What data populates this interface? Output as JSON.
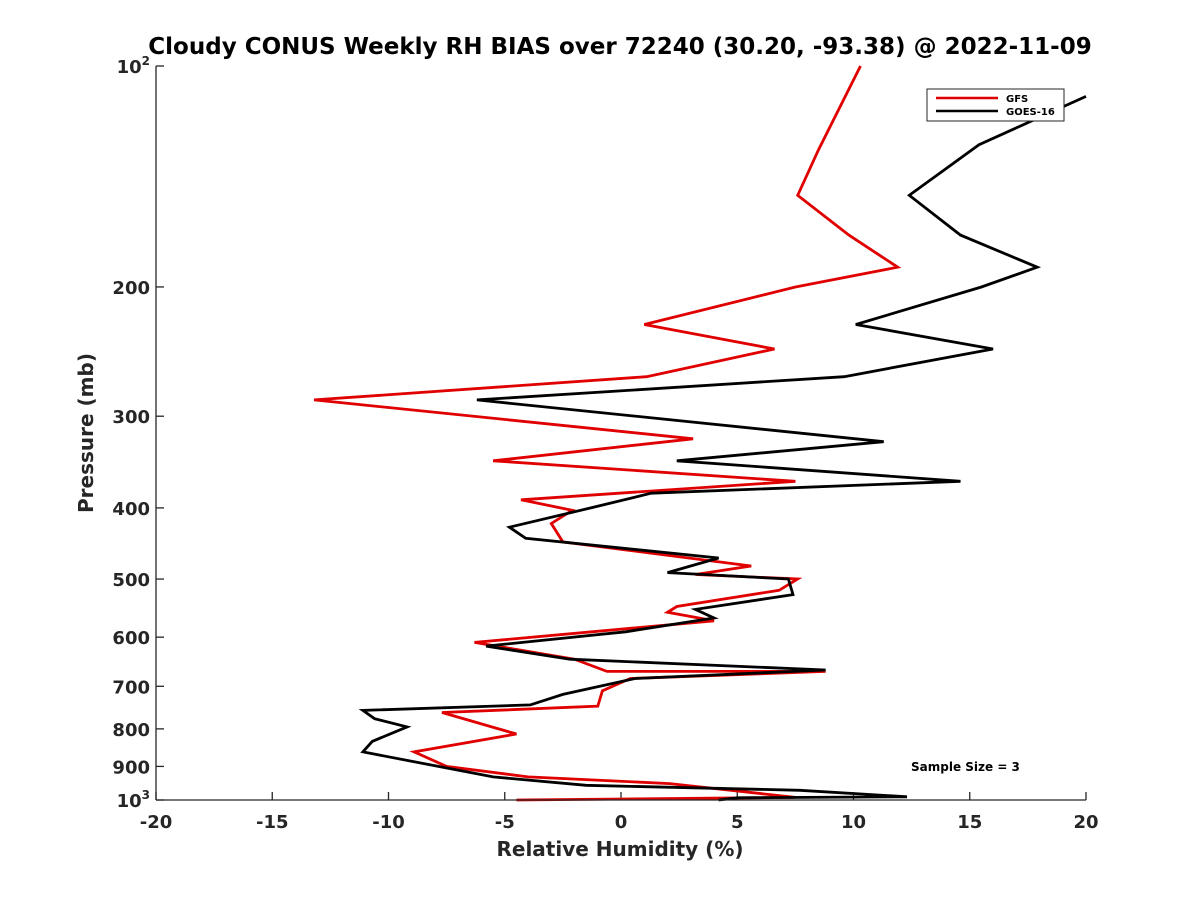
{
  "chart_data": {
    "type": "line",
    "title": "Cloudy CONUS Weekly RH BIAS over 72240 (30.20, -93.38) @ 2022-11-09",
    "xlabel": "Relative Humidity (%)",
    "ylabel": "Pressure (mb)",
    "xlim": [
      -20,
      20
    ],
    "ylim": [
      100,
      1000
    ],
    "yscale": "log",
    "y_reversed": true,
    "xticks": [
      -20,
      -15,
      -10,
      -5,
      0,
      5,
      10,
      15,
      20
    ],
    "xtick_labels": [
      "-20",
      "-15",
      "-10",
      "-5",
      "0",
      "5",
      "10",
      "15",
      "20"
    ],
    "yticks_plain": [
      {
        "value": 200,
        "label": "200"
      },
      {
        "value": 300,
        "label": "300"
      },
      {
        "value": 400,
        "label": "400"
      },
      {
        "value": 500,
        "label": "500"
      },
      {
        "value": 600,
        "label": "600"
      },
      {
        "value": 700,
        "label": "700"
      },
      {
        "value": 800,
        "label": "800"
      },
      {
        "value": 900,
        "label": "900"
      }
    ],
    "yticks_power": [
      {
        "value": 100,
        "base": "10",
        "exp": "2"
      },
      {
        "value": 1000,
        "base": "10",
        "exp": "3"
      }
    ],
    "legend": {
      "position": "top-right",
      "entries": [
        "GFS",
        "GOES-16"
      ]
    },
    "annotation": "Sample Size = 3",
    "series": [
      {
        "name": "GFS",
        "color": "#e00000",
        "points": [
          [
            10.3,
            100
          ],
          [
            8.5,
            130
          ],
          [
            7.6,
            150
          ],
          [
            9.8,
            170
          ],
          [
            11.9,
            188
          ],
          [
            7.5,
            200
          ],
          [
            1.0,
            225
          ],
          [
            6.6,
            243
          ],
          [
            1.1,
            265
          ],
          [
            -13.2,
            285
          ],
          [
            3.1,
            322
          ],
          [
            -5.5,
            345
          ],
          [
            7.5,
            368
          ],
          [
            -4.3,
            390
          ],
          [
            -2.1,
            403
          ],
          [
            -3.0,
            420
          ],
          [
            -2.5,
            445
          ],
          [
            5.6,
            480
          ],
          [
            3.2,
            493
          ],
          [
            7.6,
            500
          ],
          [
            6.8,
            518
          ],
          [
            2.4,
            545
          ],
          [
            2.0,
            555
          ],
          [
            4.0,
            570
          ],
          [
            -6.3,
            610
          ],
          [
            -2.0,
            643
          ],
          [
            -0.6,
            668
          ],
          [
            8.8,
            668
          ],
          [
            0.4,
            683
          ],
          [
            -0.8,
            710
          ],
          [
            -1.0,
            745
          ],
          [
            -7.7,
            760
          ],
          [
            -4.5,
            813
          ],
          [
            -8.9,
            860
          ],
          [
            -7.5,
            900
          ],
          [
            -4.0,
            930
          ],
          [
            2.1,
            950
          ],
          [
            7.5,
            992
          ],
          [
            -4.5,
            1000
          ]
        ]
      },
      {
        "name": "GOES-16",
        "color": "#000000",
        "points": [
          [
            20.0,
            110
          ],
          [
            15.4,
            128
          ],
          [
            12.4,
            150
          ],
          [
            14.6,
            170
          ],
          [
            17.9,
            188
          ],
          [
            15.5,
            200
          ],
          [
            10.1,
            225
          ],
          [
            16.0,
            243
          ],
          [
            9.6,
            265
          ],
          [
            -6.2,
            285
          ],
          [
            11.3,
            325
          ],
          [
            2.4,
            345
          ],
          [
            14.6,
            368
          ],
          [
            1.3,
            382
          ],
          [
            -1.3,
            400
          ],
          [
            -4.8,
            425
          ],
          [
            -4.1,
            440
          ],
          [
            4.2,
            468
          ],
          [
            2.0,
            490
          ],
          [
            7.2,
            500
          ],
          [
            7.4,
            525
          ],
          [
            3.2,
            550
          ],
          [
            4.0,
            565
          ],
          [
            0.2,
            590
          ],
          [
            -5.8,
            617
          ],
          [
            -2.2,
            643
          ],
          [
            8.8,
            665
          ],
          [
            0.6,
            683
          ],
          [
            -2.5,
            718
          ],
          [
            -3.9,
            742
          ],
          [
            -11.1,
            755
          ],
          [
            -10.6,
            775
          ],
          [
            -9.2,
            795
          ],
          [
            -10.7,
            832
          ],
          [
            -11.1,
            860
          ],
          [
            -5.5,
            930
          ],
          [
            -1.5,
            955
          ],
          [
            7.7,
            970
          ],
          [
            12.3,
            990
          ],
          [
            5.0,
            993
          ],
          [
            4.2,
            1000
          ]
        ]
      }
    ]
  }
}
